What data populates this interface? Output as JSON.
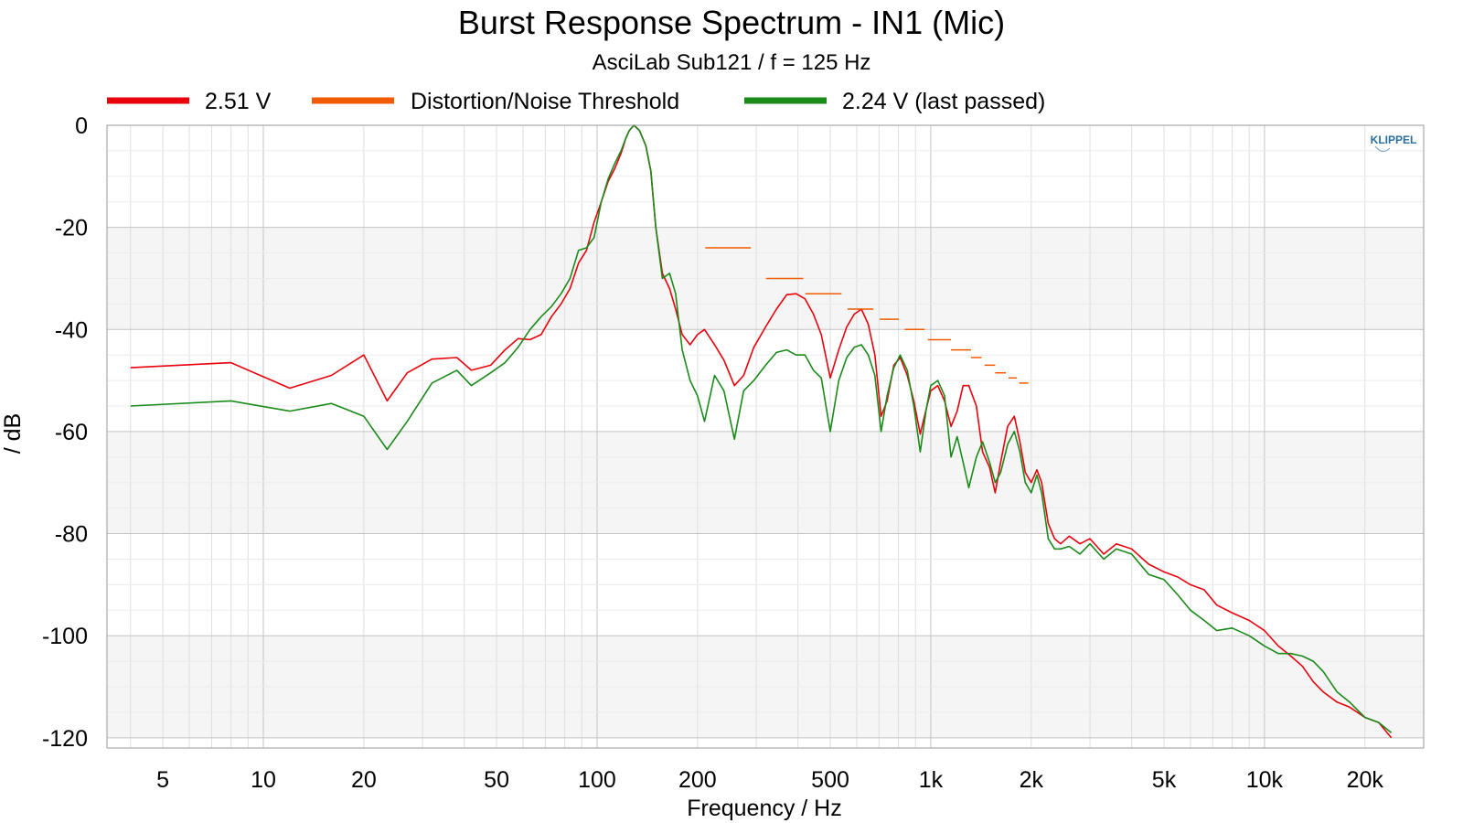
{
  "chart_data": {
    "type": "line",
    "title": "Burst Response Spectrum - IN1 (Mic)",
    "subtitle": "AsciLab Sub121 / f = 125 Hz",
    "xlabel": "Frequency / Hz",
    "ylabel": "/ dB",
    "x_scale": "log",
    "xlim": [
      3.4,
      30000
    ],
    "ylim": [
      -122,
      0
    ],
    "x_ticks": [
      5,
      10,
      20,
      50,
      100,
      200,
      500,
      1000,
      2000,
      5000,
      10000,
      20000
    ],
    "x_tick_labels": [
      "5",
      "10",
      "20",
      "50",
      "100",
      "200",
      "500",
      "1k",
      "2k",
      "5k",
      "10k",
      "20k"
    ],
    "y_ticks": [
      0,
      -20,
      -40,
      -60,
      -80,
      -100,
      -120
    ],
    "y_tick_labels": [
      "0",
      "-20",
      "-40",
      "-60",
      "-80",
      "-100",
      "-120"
    ],
    "grid": true,
    "legend_position": "top",
    "watermark": "KLIPPEL",
    "series": [
      {
        "name": "2.51 V",
        "color": "#e8000b",
        "kind": "line",
        "x": [
          4,
          8,
          12,
          16,
          20,
          23.5,
          27,
          32,
          38,
          42,
          48,
          53,
          58,
          63,
          68,
          73,
          78,
          83,
          88,
          93,
          98,
          103,
          108,
          113,
          118,
          122,
          125,
          129,
          134,
          140,
          145,
          150,
          157,
          165,
          172,
          180,
          190,
          200,
          210,
          225,
          240,
          258,
          275,
          295,
          320,
          345,
          370,
          395,
          420,
          445,
          470,
          500,
          530,
          560,
          590,
          620,
          650,
          680,
          710,
          740,
          775,
          810,
          850,
          890,
          930,
          970,
          1000,
          1050,
          1100,
          1150,
          1200,
          1250,
          1300,
          1370,
          1430,
          1500,
          1560,
          1620,
          1700,
          1780,
          1850,
          1920,
          2000,
          2080,
          2150,
          2250,
          2350,
          2450,
          2600,
          2800,
          3000,
          3300,
          3600,
          4000,
          4500,
          5000,
          5500,
          6000,
          6600,
          7200,
          8000,
          9000,
          10000,
          11000,
          12000,
          13000,
          14000,
          15000,
          16500,
          18000,
          20000,
          22000,
          24000
        ],
        "y": [
          -47.5,
          -46.5,
          -51.5,
          -49,
          -45,
          -54,
          -48.5,
          -45.8,
          -45.5,
          -48,
          -47,
          -44,
          -41.8,
          -42,
          -41,
          -37.5,
          -35,
          -32,
          -27,
          -24.5,
          -19,
          -15,
          -11,
          -8.5,
          -5.5,
          -2.5,
          -1,
          0,
          -1,
          -4,
          -9,
          -20,
          -29,
          -32,
          -36,
          -41,
          -43,
          -41,
          -40,
          -43,
          -46,
          -51,
          -49,
          -43.5,
          -39.5,
          -36,
          -33.2,
          -33,
          -34,
          -37,
          -41,
          -49.5,
          -44,
          -39.5,
          -37,
          -36,
          -39,
          -45,
          -57,
          -54,
          -47,
          -45.5,
          -49,
          -54,
          -60.5,
          -55.5,
          -52,
          -51,
          -54,
          -59,
          -56,
          -51,
          -51,
          -55,
          -64,
          -67,
          -72,
          -66,
          -59,
          -57,
          -62,
          -68,
          -70,
          -67.5,
          -70,
          -78,
          -81,
          -82,
          -80.5,
          -82,
          -81,
          -84,
          -82,
          -83,
          -86,
          -87.5,
          -88.5,
          -90,
          -91,
          -94,
          -95.5,
          -97,
          -99,
          -102,
          -104,
          -106,
          -109,
          -111,
          -113,
          -114,
          -116,
          -117,
          -120
        ]
      },
      {
        "name": "Distortion/Noise Threshold",
        "color": "#f05a00",
        "kind": "segments",
        "segments": [
          {
            "x": [
              211,
              289
            ],
            "y": -24
          },
          {
            "x": [
              321,
              415
            ],
            "y": -30
          },
          {
            "x": [
              421,
              540
            ],
            "y": -33
          },
          {
            "x": [
              563,
              673
            ],
            "y": -36
          },
          {
            "x": [
              703,
              803
            ],
            "y": -38
          },
          {
            "x": [
              836,
              958
            ],
            "y": -40
          },
          {
            "x": [
              980,
              1150
            ],
            "y": -42
          },
          {
            "x": [
              1150,
              1320
            ],
            "y": -44
          },
          {
            "x": [
              1320,
              1420
            ],
            "y": -45.5
          },
          {
            "x": [
              1450,
              1560
            ],
            "y": -47
          },
          {
            "x": [
              1560,
              1680
            ],
            "y": -48.5
          },
          {
            "x": [
              1710,
              1810
            ],
            "y": -49.5
          },
          {
            "x": [
              1840,
              1960
            ],
            "y": -50.5
          }
        ]
      },
      {
        "name": "2.24 V (last passed)",
        "color": "#1a8a1a",
        "kind": "line",
        "x": [
          4,
          8,
          12,
          16,
          20,
          23.5,
          27,
          32,
          38,
          42,
          48,
          53,
          58,
          63,
          68,
          73,
          78,
          83,
          88,
          93,
          98,
          103,
          108,
          113,
          118,
          122,
          125,
          129,
          134,
          140,
          145,
          150,
          157,
          165,
          172,
          180,
          190,
          200,
          210,
          225,
          240,
          258,
          275,
          295,
          320,
          345,
          370,
          395,
          420,
          445,
          470,
          500,
          530,
          560,
          590,
          620,
          650,
          680,
          710,
          740,
          775,
          810,
          850,
          890,
          930,
          970,
          1000,
          1050,
          1100,
          1150,
          1200,
          1250,
          1300,
          1370,
          1430,
          1500,
          1560,
          1620,
          1700,
          1780,
          1850,
          1920,
          2000,
          2080,
          2150,
          2250,
          2350,
          2450,
          2600,
          2800,
          3000,
          3300,
          3600,
          4000,
          4500,
          5000,
          5500,
          6000,
          6600,
          7200,
          8000,
          9000,
          10000,
          11000,
          12000,
          13000,
          14000,
          15000,
          16500,
          18000,
          20000,
          22000,
          24000
        ],
        "y": [
          -55,
          -54,
          -56,
          -54.5,
          -57,
          -63.5,
          -58,
          -50.5,
          -48,
          -51,
          -48.5,
          -46.5,
          -43.5,
          -40,
          -37.5,
          -35.5,
          -33,
          -30,
          -24.5,
          -24,
          -22,
          -15,
          -10.5,
          -7.5,
          -5,
          -2.5,
          -1,
          0,
          -1,
          -4,
          -9,
          -20,
          -30,
          -29,
          -33,
          -44,
          -50,
          -53,
          -58,
          -49,
          -52,
          -61.5,
          -52,
          -50,
          -47,
          -44.5,
          -44,
          -45,
          -45,
          -48,
          -49.5,
          -60,
          -50,
          -45.5,
          -43.5,
          -43,
          -45,
          -49,
          -60,
          -53,
          -47.5,
          -45,
          -48,
          -55,
          -64,
          -55.5,
          -51,
          -50,
          -53,
          -65,
          -61,
          -66,
          -71,
          -65,
          -62,
          -66,
          -70,
          -68,
          -62.5,
          -60,
          -64,
          -70,
          -72,
          -68.5,
          -72,
          -81,
          -83,
          -83,
          -82.5,
          -84,
          -82,
          -85,
          -83,
          -84,
          -88,
          -89,
          -92,
          -95,
          -97,
          -99,
          -98.5,
          -100,
          -102,
          -103.5,
          -103.5,
          -104,
          -105,
          -107,
          -111,
          -113,
          -116,
          -117,
          -119
        ]
      }
    ]
  }
}
